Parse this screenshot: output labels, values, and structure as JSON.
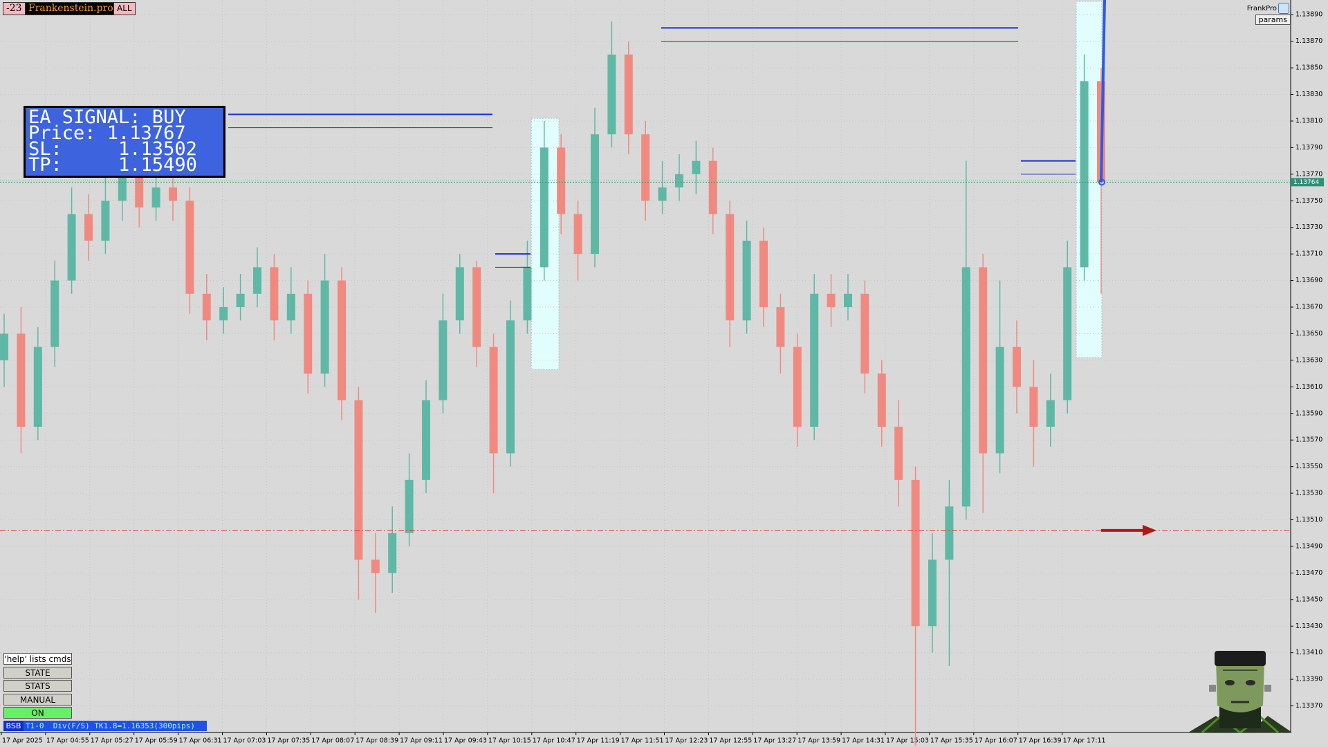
{
  "ui": {
    "badges": [
      "-23",
      "Frankenstein.pro",
      "ALL"
    ],
    "brand": "FrankPro",
    "params": "params",
    "signal": {
      "title": "EA SIGNAL: BUY",
      "lines": [
        "Price: 1.13767",
        "SL:     1.13502",
        "TP:     1.15490"
      ]
    },
    "buttons": [
      "'help' lists cmds",
      "STATE",
      "STATS",
      "MANUAL",
      "ON"
    ],
    "status": {
      "tag": "BSB",
      "text": "T1-0  Div(F/S) TK1.8=1.16353(300pips)"
    }
  },
  "chart_data": {
    "type": "candlestick",
    "colors": {
      "up": "#5fb8a6",
      "down": "#f08a80"
    },
    "open": [
      1.1363,
      1.1365,
      1.1358,
      1.1364,
      1.1369,
      1.1374,
      1.1372,
      1.1375,
      1.13775,
      1.13745,
      1.1376,
      1.1375,
      1.1368,
      1.1366,
      1.1367,
      1.1368,
      1.137,
      1.1366,
      1.1368,
      1.1362,
      1.1369,
      1.136,
      1.1348,
      1.1347,
      1.135,
      1.1354,
      1.136,
      1.1366,
      1.137,
      1.1364,
      1.1356,
      1.1366,
      1.137,
      1.1379,
      1.1374,
      1.1371,
      1.138,
      1.1386,
      1.138,
      1.1375,
      1.1376,
      1.1377,
      1.1378,
      1.1374,
      1.1366,
      1.1372,
      1.1367,
      1.1364,
      1.1358,
      1.1368,
      1.1367,
      1.1368,
      1.1362,
      1.1358,
      1.1354,
      1.1343,
      1.1348,
      1.1352,
      1.137,
      1.1356,
      1.1364,
      1.1361,
      1.1358,
      1.136,
      1.137,
      1.1384
    ],
    "high": [
      1.13665,
      1.1367,
      1.13655,
      1.13705,
      1.1376,
      1.13755,
      1.1377,
      1.1379,
      1.13785,
      1.13775,
      1.1377,
      1.1376,
      1.13695,
      1.13685,
      1.13695,
      1.13715,
      1.1371,
      1.137,
      1.1369,
      1.1371,
      1.137,
      1.1361,
      1.135,
      1.1352,
      1.1356,
      1.13615,
      1.1368,
      1.1371,
      1.13705,
      1.1365,
      1.13675,
      1.1372,
      1.1381,
      1.138,
      1.1375,
      1.1382,
      1.13885,
      1.1387,
      1.1381,
      1.1378,
      1.13785,
      1.13795,
      1.1379,
      1.1375,
      1.13735,
      1.1373,
      1.1368,
      1.1365,
      1.13695,
      1.13695,
      1.13695,
      1.1369,
      1.1363,
      1.136,
      1.1355,
      1.135,
      1.1354,
      1.1378,
      1.1371,
      1.1369,
      1.1366,
      1.1363,
      1.1362,
      1.1372,
      1.1386,
      1.1385
    ],
    "low": [
      1.1361,
      1.1356,
      1.1357,
      1.13625,
      1.1368,
      1.13705,
      1.1371,
      1.13735,
      1.1373,
      1.13735,
      1.13735,
      1.13665,
      1.13645,
      1.1365,
      1.1366,
      1.1367,
      1.13645,
      1.1365,
      1.13605,
      1.1361,
      1.13585,
      1.1345,
      1.1344,
      1.13455,
      1.1349,
      1.1353,
      1.1359,
      1.1365,
      1.13625,
      1.1353,
      1.1355,
      1.1365,
      1.1369,
      1.13725,
      1.1369,
      1.137,
      1.1379,
      1.13785,
      1.13735,
      1.1374,
      1.1375,
      1.13755,
      1.13725,
      1.1364,
      1.1365,
      1.13655,
      1.1362,
      1.13565,
      1.1357,
      1.13655,
      1.1366,
      1.13605,
      1.13565,
      1.1352,
      1.1334,
      1.1341,
      1.134,
      1.1351,
      1.13515,
      1.13545,
      1.1359,
      1.1355,
      1.13565,
      1.1359,
      1.1369,
      1.1368
    ],
    "close": [
      1.1365,
      1.1358,
      1.1364,
      1.1369,
      1.1374,
      1.1372,
      1.1375,
      1.13775,
      1.13745,
      1.1376,
      1.1375,
      1.1368,
      1.1366,
      1.1367,
      1.1368,
      1.137,
      1.1366,
      1.1368,
      1.1362,
      1.1369,
      1.136,
      1.1348,
      1.1347,
      1.135,
      1.1354,
      1.136,
      1.1366,
      1.137,
      1.1364,
      1.1356,
      1.1366,
      1.137,
      1.1379,
      1.1374,
      1.1371,
      1.138,
      1.1386,
      1.138,
      1.1375,
      1.1376,
      1.1377,
      1.1378,
      1.1374,
      1.1366,
      1.1372,
      1.1367,
      1.1364,
      1.1358,
      1.1368,
      1.1367,
      1.1368,
      1.1362,
      1.1358,
      1.1354,
      1.1343,
      1.1348,
      1.1352,
      1.137,
      1.1356,
      1.1364,
      1.1361,
      1.1358,
      1.136,
      1.137,
      1.1384,
      1.13764
    ],
    "ylim": [
      1.1335,
      1.139
    ],
    "yticks": [
      {
        "value": 1.1389,
        "label": "1.13890"
      },
      {
        "value": 1.1387,
        "label": "1.13870"
      },
      {
        "value": 1.1385,
        "label": "1.13850"
      },
      {
        "value": 1.1383,
        "label": "1.13830"
      },
      {
        "value": 1.1381,
        "label": "1.13810"
      },
      {
        "value": 1.1379,
        "label": "1.13790"
      },
      {
        "value": 1.1377,
        "label": "1.13770"
      },
      {
        "value": 1.1375,
        "label": "1.13750"
      },
      {
        "value": 1.1373,
        "label": "1.13730"
      },
      {
        "value": 1.1371,
        "label": "1.13710"
      },
      {
        "value": 1.1369,
        "label": "1.13690"
      },
      {
        "value": 1.1367,
        "label": "1.13670"
      },
      {
        "value": 1.1365,
        "label": "1.13650"
      },
      {
        "value": 1.1363,
        "label": "1.13630"
      },
      {
        "value": 1.1361,
        "label": "1.13610"
      },
      {
        "value": 1.1359,
        "label": "1.13590"
      },
      {
        "value": 1.1357,
        "label": "1.13570"
      },
      {
        "value": 1.1355,
        "label": "1.13550"
      },
      {
        "value": 1.1353,
        "label": "1.13530"
      },
      {
        "value": 1.1351,
        "label": "1.13510"
      },
      {
        "value": 1.1349,
        "label": "1.13490"
      },
      {
        "value": 1.1347,
        "label": "1.13470"
      },
      {
        "value": 1.1345,
        "label": "1.13450"
      },
      {
        "value": 1.1343,
        "label": "1.13430"
      },
      {
        "value": 1.1341,
        "label": "1.13410"
      },
      {
        "value": 1.1339,
        "label": "1.13390"
      },
      {
        "value": 1.1337,
        "label": "1.13370"
      }
    ],
    "xtick_labels": [
      "17 Apr 2025",
      "17 Apr 04:55",
      "17 Apr 05:27",
      "17 Apr 05:59",
      "17 Apr 06:31",
      "17 Apr 07:03",
      "17 Apr 07:35",
      "17 Apr 08:07",
      "17 Apr 08:39",
      "17 Apr 09:11",
      "17 Apr 09:43",
      "17 Apr 10:15",
      "17 Apr 10:47",
      "17 Apr 11:19",
      "17 Apr 11:51",
      "17 Apr 12:23",
      "17 Apr 12:55",
      "17 Apr 13:27",
      "17 Apr 13:59",
      "17 Apr 14:31",
      "17 Apr 15:03",
      "17 Apr 15:35",
      "17 Apr 16:07",
      "17 Apr 16:39",
      "17 Apr 17:11"
    ],
    "grid": true,
    "current_price": 1.13764,
    "sl_level": 1.13502,
    "levels": [
      1.1388,
      1.1387,
      1.13815,
      1.13805,
      1.1371,
      1.137,
      1.1378,
      1.1377
    ],
    "zones": [
      {
        "low": 1.13623,
        "high": 1.13812
      },
      {
        "low": 1.13632,
        "high": 1.139
      }
    ]
  }
}
